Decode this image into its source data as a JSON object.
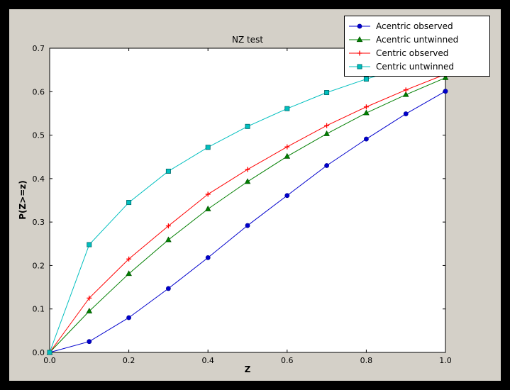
{
  "window": {
    "outer_background": "#000000",
    "figure_background": "#d4d0c8",
    "plot_background": "#ffffff",
    "axis_color": "#000000"
  },
  "chart_data": {
    "type": "line",
    "title": "NZ test",
    "xlabel": "Z",
    "ylabel": "P(Z>=z)",
    "xlim": [
      0.0,
      1.0
    ],
    "ylim": [
      0.0,
      0.7
    ],
    "xticks": [
      "0.0",
      "0.2",
      "0.4",
      "0.6",
      "0.8",
      "1.0"
    ],
    "yticks": [
      "0.0",
      "0.1",
      "0.2",
      "0.3",
      "0.4",
      "0.5",
      "0.6",
      "0.7"
    ],
    "grid": false,
    "legend_position": "upper right",
    "x": [
      0.0,
      0.1,
      0.2,
      0.3,
      0.4,
      0.5,
      0.6,
      0.7,
      0.8,
      0.9,
      1.0
    ],
    "series": [
      {
        "name": "Acentric observed",
        "color": "#0000cd",
        "edge": "#00008b",
        "marker": "circle",
        "values": [
          0.0,
          0.025,
          0.08,
          0.147,
          0.218,
          0.292,
          0.361,
          0.43,
          0.491,
          0.549,
          0.601
        ]
      },
      {
        "name": "Acentric untwinned",
        "color": "#007f00",
        "edge": "#004d00",
        "marker": "triangle",
        "values": [
          0.0,
          0.095,
          0.181,
          0.259,
          0.33,
          0.393,
          0.451,
          0.503,
          0.551,
          0.593,
          0.632
        ]
      },
      {
        "name": "Centric observed",
        "color": "#ff0000",
        "edge": "#cc0000",
        "marker": "plus",
        "values": [
          0.0,
          0.125,
          0.215,
          0.291,
          0.364,
          0.421,
          0.473,
          0.522,
          0.565,
          0.604,
          0.64
        ]
      },
      {
        "name": "Centric untwinned",
        "color": "#00bfbf",
        "edge": "#006868",
        "marker": "square",
        "values": [
          0.0,
          0.248,
          0.345,
          0.417,
          0.472,
          0.52,
          0.561,
          0.598,
          0.629,
          0.657,
          0.683
        ]
      }
    ]
  }
}
